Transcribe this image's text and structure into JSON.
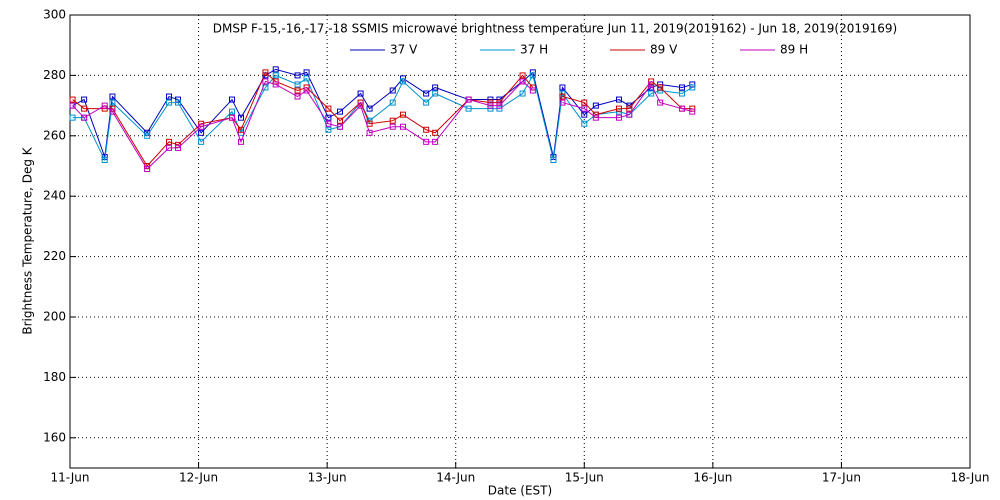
{
  "chart_data": {
    "type": "line",
    "title": "DMSP F-15,-16,-17,-18 SSMIS microwave brightness temperature Jun 11, 2019(2019162) - Jun 18, 2019(2019169)",
    "x_label": "Date (EST)",
    "y_label": "Brightness Temperature, Deg K",
    "x": [
      0.02,
      0.11,
      0.27,
      0.33,
      0.6,
      0.77,
      0.84,
      1.02,
      1.26,
      1.33,
      1.52,
      1.6,
      1.77,
      1.84,
      2.01,
      2.1,
      2.26,
      2.33,
      2.51,
      2.59,
      2.77,
      2.84,
      3.1,
      3.27,
      3.34,
      3.52,
      3.6,
      3.76,
      3.83,
      4.0,
      4.09,
      4.27,
      4.35,
      4.52,
      4.59,
      4.76,
      4.84
    ],
    "series": [
      {
        "name": "37 V",
        "color": "#0000c0",
        "values": [
          270,
          272,
          253,
          273,
          261,
          273,
          272,
          261,
          272,
          266,
          280,
          282,
          280,
          281,
          266,
          268,
          274,
          269,
          275,
          279,
          274,
          276,
          272,
          272,
          272,
          278,
          281,
          253,
          276,
          267,
          270,
          272,
          270,
          276,
          277,
          276,
          277
        ]
      },
      {
        "name": "37 H",
        "color": "#0090d0",
        "values": [
          266,
          266,
          252,
          271,
          260,
          271,
          271,
          258,
          268,
          261,
          276,
          280,
          277,
          279,
          262,
          263,
          271,
          265,
          271,
          278,
          271,
          274,
          269,
          269,
          269,
          274,
          280,
          252,
          274,
          264,
          267,
          268,
          267,
          274,
          275,
          274,
          276
        ]
      },
      {
        "name": "89 V",
        "color": "#d00000",
        "values": [
          272,
          269,
          269,
          269,
          250,
          258,
          257,
          264,
          266,
          262,
          281,
          278,
          275,
          276,
          269,
          265,
          271,
          264,
          265,
          267,
          262,
          261,
          272,
          271,
          271,
          280,
          276,
          null,
          273,
          271,
          267,
          269,
          269,
          278,
          276,
          269,
          269
        ]
      },
      {
        "name": "89 H",
        "color": "#c000c0",
        "values": [
          270,
          266,
          270,
          268,
          249,
          256,
          256,
          263,
          266,
          258,
          278,
          277,
          273,
          275,
          264,
          263,
          270,
          261,
          263,
          263,
          258,
          258,
          272,
          270,
          270,
          278,
          275,
          null,
          271,
          269,
          266,
          266,
          267,
          277,
          271,
          269,
          268
        ]
      }
    ],
    "xlim": [
      0,
      7
    ],
    "xticks": [
      {
        "value": 0,
        "label": "11-Jun"
      },
      {
        "value": 1,
        "label": "12-Jun"
      },
      {
        "value": 2,
        "label": "13-Jun"
      },
      {
        "value": 3,
        "label": "14-Jun"
      },
      {
        "value": 4,
        "label": "15-Jun"
      },
      {
        "value": 5,
        "label": "16-Jun"
      },
      {
        "value": 6,
        "label": "17-Jun"
      },
      {
        "value": 7,
        "label": "18-Jun"
      }
    ],
    "ylim": [
      150,
      300
    ],
    "yticks": [
      160,
      180,
      200,
      220,
      240,
      260,
      280,
      300
    ],
    "grid": true
  }
}
